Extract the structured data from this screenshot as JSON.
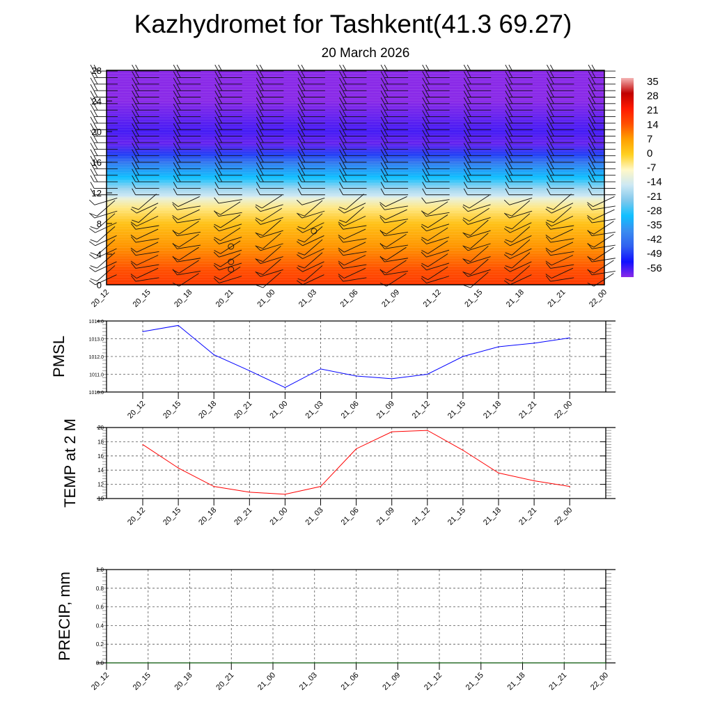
{
  "title": "Kazhydromet for Tashkent(41.3 69.27)",
  "subtitle": "20 March 2026",
  "chart_data": [
    {
      "type": "heatmap",
      "name": "temperature-wind cross-section",
      "x": [
        "20_12",
        "20_15",
        "20_18",
        "20_21",
        "21_00",
        "21_03",
        "21_06",
        "21_09",
        "21_12",
        "21_15",
        "21_18",
        "21_21",
        "22_00"
      ],
      "ylim": [
        0,
        28
      ],
      "yticks": [
        0,
        4,
        8,
        12,
        16,
        20,
        24,
        28
      ],
      "colorbar": {
        "labels": [
          "35",
          "28",
          "21",
          "14",
          "7",
          "0",
          "-7",
          "-14",
          "-21",
          "-28",
          "-35",
          "-42",
          "-49",
          "-56"
        ],
        "colors": [
          "#f4b4b4",
          "#c00000",
          "#ff1a00",
          "#ff5000",
          "#ffa000",
          "#ffd020",
          "#fff8c8",
          "#cce8f4",
          "#80c8ec",
          "#10c0ff",
          "#3a8cf0",
          "#3060f0",
          "#1010ff",
          "#8a2ae8"
        ]
      },
      "profile_heights": [
        0,
        2,
        5,
        8,
        10,
        11.3,
        11.6,
        12.5,
        14,
        16,
        17,
        18.5,
        20,
        22,
        24,
        28
      ],
      "profile_values": [
        17,
        14,
        8,
        2,
        -4,
        -10,
        -14,
        -18,
        -28,
        -38,
        -45,
        -54,
        -52,
        -54,
        -56,
        -56
      ]
    },
    {
      "type": "line",
      "ylabel": "PMSL",
      "categories": [
        "20_12",
        "20_15",
        "20_18",
        "20_21",
        "21_00",
        "21_03",
        "21_06",
        "21_09",
        "21_12",
        "21_15",
        "21_18",
        "21_21",
        "22_00"
      ],
      "values": [
        1013.4,
        1013.75,
        1012.1,
        1011.2,
        1010.25,
        1011.3,
        1010.9,
        1010.75,
        1011.0,
        1012.0,
        1012.55,
        1012.75,
        1013.05
      ],
      "ylim": [
        1010.0,
        1014.0
      ],
      "ytick_labels": [
        "1010.0",
        "1011.0",
        "1012.0",
        "1013.0",
        "1014.0"
      ],
      "color": "#0000ff"
    },
    {
      "type": "line",
      "ylabel": "TEMP at 2 M",
      "categories": [
        "20_12",
        "20_15",
        "20_18",
        "20_21",
        "21_00",
        "21_03",
        "21_06",
        "21_09",
        "21_12",
        "21_15",
        "21_18",
        "21_21",
        "22_00"
      ],
      "values": [
        17.6,
        14.3,
        11.7,
        10.9,
        10.6,
        11.7,
        17.0,
        19.4,
        19.6,
        16.8,
        13.6,
        12.5,
        11.7
      ],
      "ylim": [
        10,
        20
      ],
      "ytick_labels": [
        "10",
        "12",
        "14",
        "16",
        "18",
        "20"
      ],
      "color": "#ff0000"
    },
    {
      "type": "line",
      "ylabel": "PRECIP, mm",
      "categories": [
        "20_12",
        "20_15",
        "20_18",
        "20_21",
        "21_00",
        "21_03",
        "21_06",
        "21_09",
        "21_12",
        "21_15",
        "21_18",
        "21_21",
        "22_00"
      ],
      "values": [
        0,
        0,
        0,
        0,
        0,
        0,
        0,
        0,
        0,
        0,
        0,
        0,
        0
      ],
      "ylim": [
        0.0,
        1.0
      ],
      "ytick_labels": [
        "0.0",
        "0.2",
        "0.4",
        "0.6",
        "0.8",
        "1.0"
      ],
      "color": "#006400"
    }
  ]
}
